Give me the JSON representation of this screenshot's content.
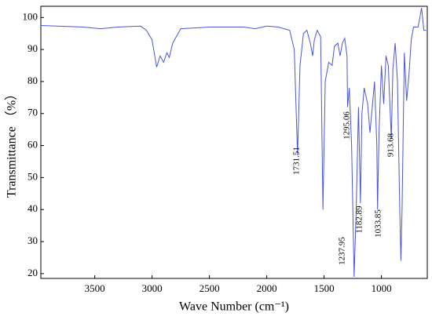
{
  "chart_data": {
    "type": "line",
    "xlabel": "Wave Number (cm⁻¹)",
    "ylabel": "Transmittance （%）",
    "xlim": [
      3970,
      600
    ],
    "xticks": [
      3500,
      3000,
      2500,
      2000,
      1500,
      1000
    ],
    "ylim": [
      18.5,
      103.5
    ],
    "yticks": [
      20,
      30,
      40,
      50,
      60,
      70,
      80,
      90,
      100
    ],
    "annotations": [
      "1731.51",
      "1295.06",
      "1237.95",
      "1182.89",
      "1033.85",
      "913.68"
    ],
    "series": [
      {
        "color": "#4a55d8",
        "x": [
          3970,
          3600,
          3450,
          3300,
          3100,
          3050,
          3000,
          2960,
          2930,
          2900,
          2870,
          2850,
          2820,
          2750,
          2500,
          2200,
          2100,
          2000,
          1900,
          1800,
          1760,
          1731.51,
          1710,
          1680,
          1650,
          1620,
          1600,
          1585,
          1560,
          1530,
          1510,
          1490,
          1460,
          1430,
          1410,
          1380,
          1360,
          1340,
          1320,
          1300,
          1295.06,
          1280,
          1260,
          1237.95,
          1220,
          1200,
          1182.89,
          1170,
          1150,
          1120,
          1100,
          1080,
          1060,
          1040,
          1033.85,
          1020,
          1000,
          980,
          960,
          940,
          913.68,
          900,
          880,
          860,
          840,
          830,
          820,
          800,
          780,
          760,
          740,
          720,
          680,
          650,
          630,
          610
        ],
        "values": [
          97.5,
          97,
          96.5,
          97,
          97.3,
          96,
          93,
          84.5,
          88,
          86,
          89,
          87.5,
          92,
          96.5,
          97,
          97,
          96.5,
          97.3,
          97,
          96,
          90,
          57,
          85,
          95,
          96,
          92,
          88,
          93,
          96,
          94,
          40,
          80,
          86,
          85,
          91,
          92,
          88,
          92,
          93.5,
          88,
          72,
          78,
          60,
          19,
          40,
          72,
          42,
          70,
          78,
          73,
          64,
          72,
          80,
          60,
          40,
          65,
          85,
          73,
          88,
          85,
          62,
          84,
          92,
          80,
          40,
          24,
          40,
          89,
          74,
          82,
          93,
          97,
          97,
          103,
          96,
          96
        ]
      }
    ]
  }
}
